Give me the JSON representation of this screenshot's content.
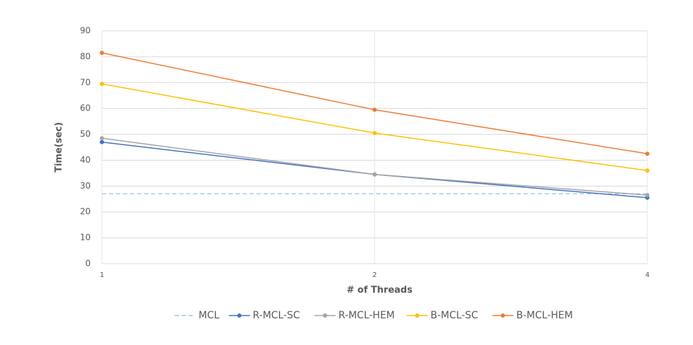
{
  "chart_data": {
    "type": "line",
    "x_label": "# of Threads",
    "y_label": "Time(sec)",
    "categories": [
      "1",
      "2",
      "4"
    ],
    "series": [
      {
        "name": "MCL",
        "color": "#9dc3e6",
        "dashed": true,
        "markers": false,
        "values": [
          27,
          27,
          27
        ]
      },
      {
        "name": "R-MCL-SC",
        "color": "#4472c4",
        "dashed": false,
        "markers": true,
        "values": [
          47,
          34.5,
          25.5
        ]
      },
      {
        "name": "R-MCL-HEM",
        "color": "#a5a5a5",
        "dashed": false,
        "markers": true,
        "values": [
          48.5,
          34.5,
          26.5
        ]
      },
      {
        "name": "B-MCL-SC",
        "color": "#ffc000",
        "dashed": false,
        "markers": true,
        "values": [
          69.5,
          50.5,
          36
        ]
      },
      {
        "name": "B-MCL-HEM",
        "color": "#ed7d31",
        "dashed": false,
        "markers": true,
        "values": [
          81.5,
          59.5,
          42.5
        ]
      }
    ],
    "ylim": [
      0,
      90
    ],
    "yticks": [
      0,
      10,
      20,
      30,
      40,
      50,
      60,
      70,
      80,
      90
    ],
    "grid": true
  }
}
